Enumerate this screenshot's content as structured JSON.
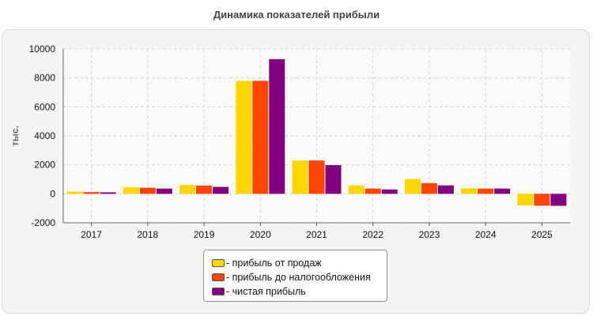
{
  "chart_data": {
    "type": "bar",
    "title": "Динамика показателей прибыли",
    "ylabel": "тыс.",
    "xlabel": "",
    "categories": [
      "2017",
      "2018",
      "2019",
      "2020",
      "2021",
      "2022",
      "2023",
      "2024",
      "2025"
    ],
    "ylim": [
      -2000,
      10000
    ],
    "yticks": [
      "-2000",
      "0",
      "2000",
      "4000",
      "6000",
      "8000",
      "10000"
    ],
    "grid": true,
    "legend_position": "bottom-center",
    "series": [
      {
        "name": "- прибыль от продаж",
        "color": "#FFD700",
        "values": [
          150,
          450,
          620,
          7800,
          2300,
          580,
          1020,
          380,
          -800
        ]
      },
      {
        "name": "- прибыль до налогообложения",
        "color": "#FF4500",
        "values": [
          120,
          420,
          570,
          7800,
          2300,
          360,
          740,
          360,
          -820
        ]
      },
      {
        "name": "- чистая прибыль",
        "color": "#800080",
        "values": [
          100,
          360,
          480,
          9300,
          1980,
          300,
          580,
          360,
          -830
        ]
      }
    ]
  }
}
